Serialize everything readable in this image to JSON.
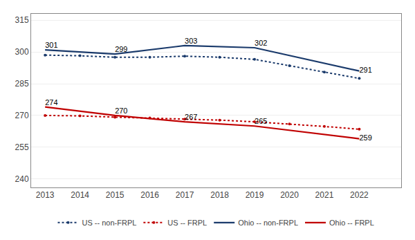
{
  "chart_data": {
    "type": "line",
    "series": [
      {
        "name": "US -- non-FRPL",
        "color": "#1a3a6b",
        "line_style": "dotted",
        "marker": "circle",
        "x": [
          2013,
          2014,
          2015,
          2016,
          2017,
          2018,
          2019,
          2020,
          2021,
          2022
        ],
        "values": [
          298.5,
          298.2,
          297.5,
          297.5,
          298.0,
          297.5,
          296.5,
          293.5,
          290.5,
          287.5
        ]
      },
      {
        "name": "US -- FRPL",
        "color": "#c00000",
        "line_style": "dotted",
        "marker": "circle",
        "x": [
          2013,
          2014,
          2015,
          2016,
          2017,
          2018,
          2019,
          2020,
          2021,
          2022
        ],
        "values": [
          270.0,
          269.8,
          269.2,
          268.8,
          268.3,
          267.8,
          267.0,
          266.0,
          264.8,
          263.5
        ]
      },
      {
        "name": "Ohio -- non-FRPL",
        "color": "#1a3a6b",
        "line_style": "solid",
        "data_labels": true,
        "x": [
          2013,
          2015,
          2017,
          2019,
          2022
        ],
        "values": [
          301,
          299,
          303,
          302,
          291
        ]
      },
      {
        "name": "Ohio -- FRPL",
        "color": "#c00000",
        "line_style": "solid",
        "data_labels": true,
        "x": [
          2013,
          2015,
          2017,
          2019,
          2022
        ],
        "values": [
          274,
          270,
          267,
          265,
          259
        ]
      }
    ],
    "xlim": [
      2012.6,
      2023.2
    ],
    "xticks": [
      2013,
      2014,
      2015,
      2016,
      2017,
      2018,
      2019,
      2020,
      2021,
      2022
    ],
    "ylim": [
      236,
      318
    ],
    "yticks": [
      240,
      255,
      270,
      285,
      300,
      315
    ],
    "grid": true,
    "legend": "bottom"
  }
}
